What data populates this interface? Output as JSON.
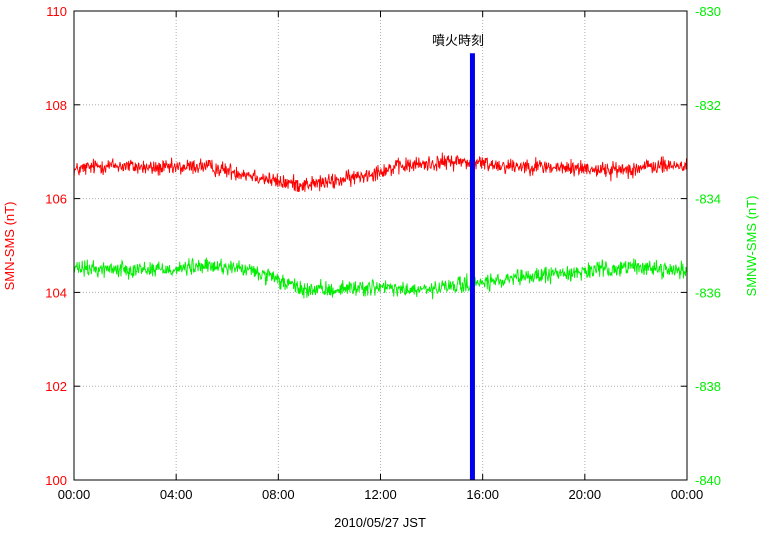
{
  "chart_data": {
    "type": "line",
    "title": "",
    "xlabel": "2010/05/27 JST",
    "x_ticks": [
      "00:00",
      "04:00",
      "08:00",
      "12:00",
      "16:00",
      "20:00",
      "00:00"
    ],
    "x_range_hours": [
      0,
      24
    ],
    "y_left": {
      "label": "SMN-SMS (nT)",
      "range": [
        100,
        110
      ],
      "ticks": [
        "100",
        "102",
        "104",
        "106",
        "108",
        "110"
      ],
      "color": "#ff0000"
    },
    "y_right": {
      "label": "SMNW-SMS (nT)",
      "range": [
        -840,
        -830
      ],
      "ticks": [
        "-840",
        "-838",
        "-836",
        "-834",
        "-832",
        "-830"
      ],
      "color": "#00ee00"
    },
    "grid": true,
    "annotation": {
      "text": "噴火時刻",
      "x_hours": 15.6,
      "y_left_from": 100,
      "y_left_to": 109.1,
      "color": "#0000ee"
    },
    "series": [
      {
        "axis": "left",
        "color": "#ff0000",
        "x_hours": [
          0,
          1,
          2,
          3,
          4,
          5,
          6,
          7,
          8,
          9,
          10,
          11,
          12,
          13,
          14,
          15,
          16,
          17,
          18,
          19,
          20,
          21,
          22,
          23,
          24
        ],
        "values": [
          106.6,
          106.7,
          106.7,
          106.65,
          106.65,
          106.7,
          106.6,
          106.5,
          106.35,
          106.3,
          106.35,
          106.45,
          106.6,
          106.7,
          106.75,
          106.8,
          106.75,
          106.7,
          106.7,
          106.65,
          106.65,
          106.6,
          106.65,
          106.7,
          106.7
        ],
        "noise": 0.15
      },
      {
        "axis": "right",
        "color": "#00ee00",
        "x_hours": [
          0,
          1,
          2,
          3,
          4,
          5,
          6,
          7,
          8,
          9,
          10,
          11,
          12,
          13,
          14,
          15,
          16,
          17,
          18,
          19,
          20,
          21,
          22,
          23,
          24
        ],
        "values": [
          -835.5,
          -835.5,
          -835.5,
          -835.5,
          -835.5,
          -835.45,
          -835.45,
          -835.55,
          -835.75,
          -835.95,
          -835.95,
          -835.9,
          -835.9,
          -835.95,
          -835.95,
          -835.85,
          -835.8,
          -835.75,
          -835.65,
          -835.6,
          -835.55,
          -835.5,
          -835.45,
          -835.5,
          -835.55
        ],
        "noise": 0.15
      }
    ]
  }
}
